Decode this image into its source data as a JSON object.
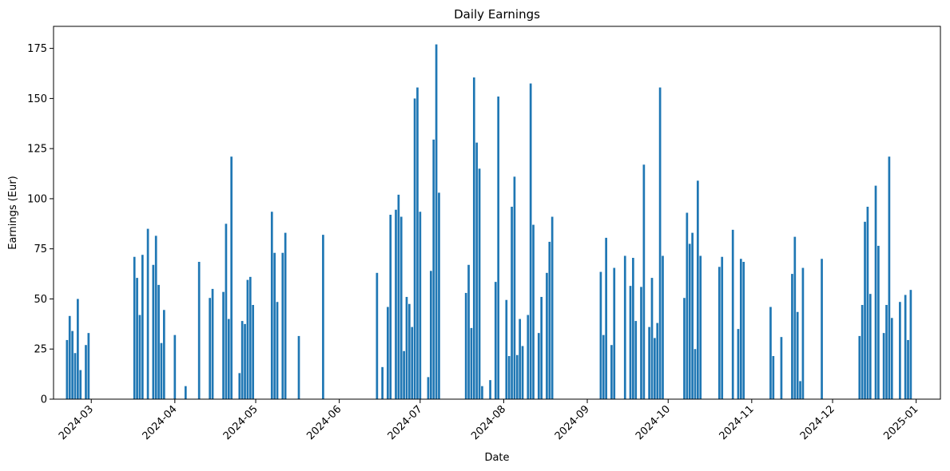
{
  "chart_data": {
    "type": "bar",
    "title": "Daily Earnings",
    "xlabel": "Date",
    "ylabel": "Earnings (Eur)",
    "color": "#1f77b4",
    "xlim": [
      "2024-02-16",
      "2025-01-10"
    ],
    "ylim": [
      0,
      186
    ],
    "y_ticks": [
      0,
      25,
      50,
      75,
      100,
      125,
      150,
      175
    ],
    "x_ticks": [
      "2024-03-01",
      "2024-04-01",
      "2024-05-01",
      "2024-06-01",
      "2024-07-01",
      "2024-08-01",
      "2024-09-01",
      "2024-10-01",
      "2024-11-01",
      "2024-12-01",
      "2025-01-01"
    ],
    "x_tick_labels": [
      "2024-03",
      "2024-04",
      "2024-05",
      "2024-06",
      "2024-07",
      "2024-08",
      "2024-09",
      "2024-10",
      "2024-11",
      "2024-12",
      "2025-01"
    ],
    "points": [
      [
        "2024-02-21",
        29.5
      ],
      [
        "2024-02-22",
        41.5
      ],
      [
        "2024-02-23",
        34
      ],
      [
        "2024-02-24",
        23
      ],
      [
        "2024-02-25",
        50
      ],
      [
        "2024-02-26",
        14.5
      ],
      [
        "2024-02-28",
        27
      ],
      [
        "2024-02-29",
        33
      ],
      [
        "2024-03-17",
        71
      ],
      [
        "2024-03-18",
        60.5
      ],
      [
        "2024-03-19",
        42
      ],
      [
        "2024-03-20",
        72
      ],
      [
        "2024-03-22",
        85
      ],
      [
        "2024-03-24",
        67
      ],
      [
        "2024-03-25",
        81.5
      ],
      [
        "2024-03-26",
        57
      ],
      [
        "2024-03-27",
        28
      ],
      [
        "2024-03-28",
        44.5
      ],
      [
        "2024-04-01",
        32
      ],
      [
        "2024-04-05",
        6.5
      ],
      [
        "2024-04-10",
        68.5
      ],
      [
        "2024-04-14",
        50.5
      ],
      [
        "2024-04-15",
        55
      ],
      [
        "2024-04-19",
        53.5
      ],
      [
        "2024-04-20",
        87.5
      ],
      [
        "2024-04-21",
        40
      ],
      [
        "2024-04-22",
        121
      ],
      [
        "2024-04-25",
        13
      ],
      [
        "2024-04-26",
        39
      ],
      [
        "2024-04-27",
        37.5
      ],
      [
        "2024-04-28",
        59.5
      ],
      [
        "2024-04-29",
        61
      ],
      [
        "2024-04-30",
        47
      ],
      [
        "2024-05-07",
        93.5
      ],
      [
        "2024-05-08",
        73
      ],
      [
        "2024-05-09",
        48.5
      ],
      [
        "2024-05-11",
        73
      ],
      [
        "2024-05-12",
        83
      ],
      [
        "2024-05-17",
        31.5
      ],
      [
        "2024-05-26",
        82
      ],
      [
        "2024-06-15",
        63
      ],
      [
        "2024-06-17",
        16
      ],
      [
        "2024-06-19",
        46
      ],
      [
        "2024-06-20",
        92
      ],
      [
        "2024-06-22",
        94.5
      ],
      [
        "2024-06-23",
        102
      ],
      [
        "2024-06-24",
        91
      ],
      [
        "2024-06-25",
        24
      ],
      [
        "2024-06-26",
        51
      ],
      [
        "2024-06-27",
        47.5
      ],
      [
        "2024-06-28",
        36
      ],
      [
        "2024-06-29",
        150
      ],
      [
        "2024-06-30",
        155.5
      ],
      [
        "2024-07-01",
        93.5
      ],
      [
        "2024-07-04",
        11
      ],
      [
        "2024-07-05",
        64
      ],
      [
        "2024-07-06",
        129.5
      ],
      [
        "2024-07-07",
        177
      ],
      [
        "2024-07-08",
        103
      ],
      [
        "2024-07-18",
        53
      ],
      [
        "2024-07-19",
        67
      ],
      [
        "2024-07-20",
        35.5
      ],
      [
        "2024-07-21",
        160.5
      ],
      [
        "2024-07-22",
        128
      ],
      [
        "2024-07-23",
        115
      ],
      [
        "2024-07-24",
        6.5
      ],
      [
        "2024-07-27",
        9.5
      ],
      [
        "2024-07-29",
        58.5
      ],
      [
        "2024-07-30",
        151
      ],
      [
        "2024-08-02",
        49.5
      ],
      [
        "2024-08-03",
        21.5
      ],
      [
        "2024-08-04",
        96
      ],
      [
        "2024-08-05",
        111
      ],
      [
        "2024-08-06",
        22
      ],
      [
        "2024-08-07",
        40
      ],
      [
        "2024-08-08",
        26.5
      ],
      [
        "2024-08-10",
        42
      ],
      [
        "2024-08-11",
        157.5
      ],
      [
        "2024-08-12",
        87
      ],
      [
        "2024-08-14",
        33
      ],
      [
        "2024-08-15",
        51
      ],
      [
        "2024-08-17",
        63
      ],
      [
        "2024-08-18",
        78.5
      ],
      [
        "2024-08-19",
        91
      ],
      [
        "2024-09-06",
        63.5
      ],
      [
        "2024-09-07",
        32
      ],
      [
        "2024-09-08",
        80.5
      ],
      [
        "2024-09-10",
        27
      ],
      [
        "2024-09-11",
        65.5
      ],
      [
        "2024-09-15",
        71.5
      ],
      [
        "2024-09-17",
        56.5
      ],
      [
        "2024-09-18",
        70.5
      ],
      [
        "2024-09-19",
        39
      ],
      [
        "2024-09-21",
        56
      ],
      [
        "2024-09-22",
        117
      ],
      [
        "2024-09-24",
        36
      ],
      [
        "2024-09-25",
        60.5
      ],
      [
        "2024-09-26",
        30.5
      ],
      [
        "2024-09-27",
        38
      ],
      [
        "2024-09-28",
        155.5
      ],
      [
        "2024-09-29",
        71.5
      ],
      [
        "2024-10-07",
        50.5
      ],
      [
        "2024-10-08",
        93
      ],
      [
        "2024-10-09",
        77.5
      ],
      [
        "2024-10-10",
        83
      ],
      [
        "2024-10-11",
        25
      ],
      [
        "2024-10-12",
        109
      ],
      [
        "2024-10-13",
        71.5
      ],
      [
        "2024-10-20",
        66
      ],
      [
        "2024-10-21",
        71
      ],
      [
        "2024-10-25",
        84.5
      ],
      [
        "2024-10-27",
        35
      ],
      [
        "2024-10-28",
        70
      ],
      [
        "2024-10-29",
        68.5
      ],
      [
        "2024-11-08",
        46
      ],
      [
        "2024-11-09",
        21.5
      ],
      [
        "2024-11-12",
        31
      ],
      [
        "2024-11-16",
        62.5
      ],
      [
        "2024-11-17",
        81
      ],
      [
        "2024-11-18",
        43.5
      ],
      [
        "2024-11-19",
        9
      ],
      [
        "2024-11-20",
        65.5
      ],
      [
        "2024-11-27",
        70
      ],
      [
        "2024-12-11",
        31.5
      ],
      [
        "2024-12-12",
        47
      ],
      [
        "2024-12-13",
        88.5
      ],
      [
        "2024-12-14",
        96
      ],
      [
        "2024-12-15",
        52.5
      ],
      [
        "2024-12-17",
        106.5
      ],
      [
        "2024-12-18",
        76.5
      ],
      [
        "2024-12-20",
        33
      ],
      [
        "2024-12-21",
        47
      ],
      [
        "2024-12-22",
        121
      ],
      [
        "2024-12-23",
        40.5
      ],
      [
        "2024-12-26",
        48.5
      ],
      [
        "2024-12-28",
        52
      ],
      [
        "2024-12-29",
        29.5
      ],
      [
        "2024-12-30",
        54.5
      ]
    ]
  }
}
